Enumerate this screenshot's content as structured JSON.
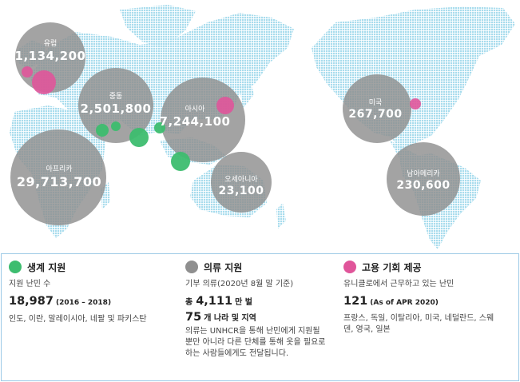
{
  "colors": {
    "continent": "#a8dced",
    "survival": "#3dbd6f",
    "clothing": "#8f8f8f",
    "employment": "#e0559a",
    "border": "#9cc9e6"
  },
  "regions": [
    {
      "name": "유럽",
      "value": "1,134,200"
    },
    {
      "name": "중동",
      "value": "2,501,800"
    },
    {
      "name": "아시아",
      "value": "7,244,100"
    },
    {
      "name": "아프리카",
      "value": "29,713,700"
    },
    {
      "name": "오세아니아",
      "value": "23,100"
    },
    {
      "name": "미국",
      "value": "267,700"
    },
    {
      "name": "남아메리카",
      "value": "230,600"
    }
  ],
  "legend": {
    "survival": {
      "title": "생계 지원",
      "subtitle": "지원 난민 수",
      "number": "18,987",
      "number_note": "(2016 – 2018)",
      "detail": "인도, 이란, 말레이시아, 네팔 및 파키스탄"
    },
    "clothing": {
      "title": "의류 지원",
      "subtitle": "기부 의류(2020년 8월 말 기준)",
      "prefix": "총",
      "number": "4,111",
      "unit": "만 벌",
      "countries_number": "75",
      "countries_unit": "개 나라 및 지역",
      "detail": "의류는 UNHCR을 통해 난민에게 지원될 뿐만 아니라 다른 단체를 통해 옷을 필요로 하는 사람들에게도 전달됩니다."
    },
    "employment": {
      "title": "고용 기회 제공",
      "subtitle": "유니클로에서 근무하고 있는 난민",
      "number": "121",
      "number_note": "(As of APR 2020)",
      "detail": "프랑스, 독일, 이탈리아, 미국, 네덜란드, 스웨덴, 영국, 일본"
    }
  }
}
